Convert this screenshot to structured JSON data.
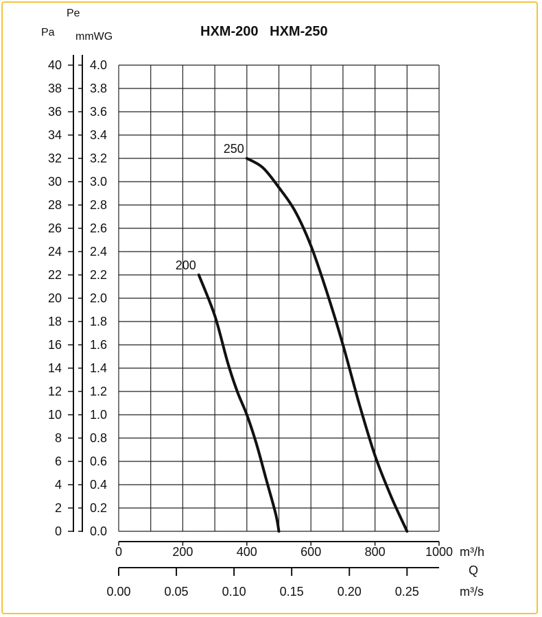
{
  "chart_data": {
    "type": "line",
    "title": "HXM-200   HXM-250",
    "units": {
      "pa": "Pa",
      "pe": "Pe",
      "mmwg": "mmWG",
      "flow_h": "m³/h",
      "q": "Q",
      "flow_s": "m³/s"
    },
    "xlim": [
      0,
      1000
    ],
    "ylim_mmwg": [
      0,
      4
    ],
    "grid": true,
    "x_ticks_m3h": [
      "0",
      "200",
      "400",
      "600",
      "800",
      "1000"
    ],
    "x_ticks_m3s": [
      "0.00",
      "0.05",
      "0.10",
      "0.15",
      "0.20",
      "0.25"
    ],
    "y_ticks_pa": [
      "0",
      "2",
      "4",
      "6",
      "8",
      "10",
      "12",
      "14",
      "16",
      "18",
      "20",
      "22",
      "24",
      "26",
      "28",
      "30",
      "32",
      "34",
      "36",
      "38",
      "40"
    ],
    "y_ticks_mmwg": [
      "0.0",
      "0.2",
      "0.4",
      "0.6",
      "0.8",
      "1.0",
      "1.2",
      "1.4",
      "1.6",
      "1.8",
      "2.0",
      "2.2",
      "2.4",
      "2.6",
      "2.8",
      "3.0",
      "3.2",
      "3.4",
      "3.6",
      "3.8",
      "4.0"
    ],
    "series": [
      {
        "name": "200",
        "color": "#111111",
        "x": [
          250,
          300,
          340,
          370,
          400,
          430,
          460,
          490,
          500
        ],
        "y": [
          2.2,
          1.85,
          1.45,
          1.2,
          1.0,
          0.75,
          0.45,
          0.15,
          0.0
        ]
      },
      {
        "name": "250",
        "color": "#111111",
        "x": [
          400,
          450,
          500,
          550,
          600,
          650,
          700,
          750,
          800,
          850,
          900
        ],
        "y": [
          3.2,
          3.12,
          2.95,
          2.75,
          2.45,
          2.05,
          1.6,
          1.1,
          0.65,
          0.3,
          0.0
        ]
      }
    ]
  }
}
